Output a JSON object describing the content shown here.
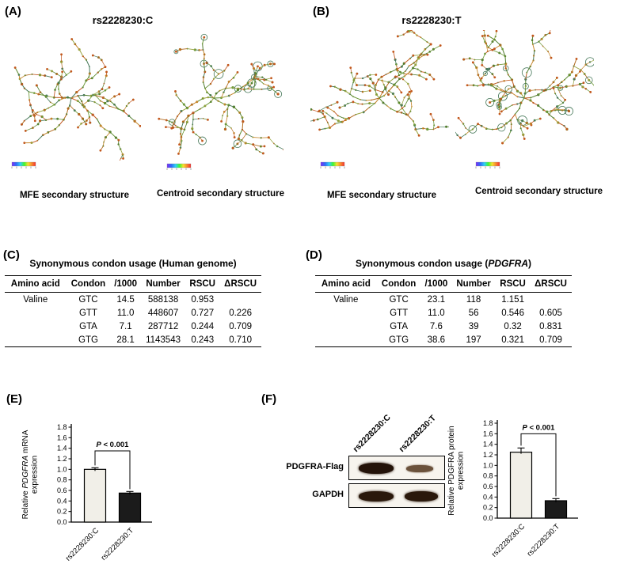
{
  "panels": {
    "a": {
      "label": "(A)",
      "title": "rs2228230:C",
      "mfe_caption": "MFE secondary structure",
      "centroid_caption": "Centroid secondary structure"
    },
    "b": {
      "label": "(B)",
      "title": "rs2228230:T",
      "mfe_caption": "MFE secondary structure",
      "centroid_caption": "Centroid secondary structure"
    },
    "c": {
      "label": "(C)",
      "title_runs": [
        {
          "t": "Synonymous condon usage (Human genome)"
        }
      ],
      "table": {
        "headers": [
          "Amino acid",
          "Condon",
          "/1000",
          "Number",
          "RSCU",
          "ΔRSCU"
        ],
        "rows": [
          [
            "Valine",
            "GTC",
            "14.5",
            "588138",
            "0.953",
            ""
          ],
          [
            "",
            "GTT",
            "11.0",
            "448607",
            "0.727",
            "0.226"
          ],
          [
            "",
            "GTA",
            "7.1",
            "287712",
            "0.244",
            "0.709"
          ],
          [
            "",
            "GTG",
            "28.1",
            "1143543",
            "0.243",
            "0.710"
          ]
        ]
      }
    },
    "d": {
      "label": "(D)",
      "title_runs": [
        {
          "t": "Synonymous condon usage ("
        },
        {
          "t": "PDGFRA",
          "i": true
        },
        {
          "t": ")"
        }
      ],
      "table": {
        "headers": [
          "Amino acid",
          "Condon",
          "/1000",
          "Number",
          "RSCU",
          "ΔRSCU"
        ],
        "rows": [
          [
            "Valine",
            "GTC",
            "23.1",
            "118",
            "1.151",
            ""
          ],
          [
            "",
            "GTT",
            "11.0",
            "56",
            "0.546",
            "0.605"
          ],
          [
            "",
            "GTA",
            "7.6",
            "39",
            "0.32",
            "0.831"
          ],
          [
            "",
            "GTG",
            "38.6",
            "197",
            "0.321",
            "0.709"
          ]
        ]
      }
    },
    "e": {
      "label": "(E)"
    },
    "f": {
      "label": "(F)",
      "blot": {
        "lane_labels": [
          "rs2228230:C",
          "rs2228230:T"
        ],
        "row_labels": [
          "PDGFRA-Flag",
          "GAPDH"
        ]
      }
    }
  },
  "chart_data": [
    {
      "type": "bar",
      "panel": "E",
      "title": "",
      "xlabel": "",
      "ylabel": "Relative PDGFRA mRNA expression",
      "ylabel_lines": [
        [
          {
            "t": "Relative "
          },
          {
            "t": "PDGFRA",
            "i": true
          },
          {
            "t": " mRNA"
          }
        ],
        [
          {
            "t": "expression"
          }
        ]
      ],
      "categories": [
        "rs2228230:C",
        "rs2228230:T"
      ],
      "values": [
        1.0,
        0.55
      ],
      "errors": [
        0.03,
        0.03
      ],
      "bar_colors": [
        "#f1efe8",
        "#1b1b1b"
      ],
      "ylim": [
        0,
        1.8
      ],
      "yticks": [
        0.0,
        0.2,
        0.4,
        0.6,
        0.8,
        1.0,
        1.2,
        1.4,
        1.6,
        1.8
      ],
      "grid": false,
      "legend": "none",
      "annotation": "P < 0.001",
      "annotation_runs": [
        {
          "t": "P",
          "i": true
        },
        {
          "t": " < 0.001"
        }
      ],
      "bracket_y": 1.35
    },
    {
      "type": "bar",
      "panel": "F",
      "title": "",
      "xlabel": "",
      "ylabel": "Relative PDGFRA protein expression",
      "ylabel_lines": [
        [
          {
            "t": "Relative PDGFRA protein"
          }
        ],
        [
          {
            "t": "expression"
          }
        ]
      ],
      "categories": [
        "rs2228230:C",
        "rs2228230:T"
      ],
      "values": [
        1.25,
        0.33
      ],
      "errors": [
        0.08,
        0.04
      ],
      "bar_colors": [
        "#f1efe8",
        "#1b1b1b"
      ],
      "ylim": [
        0,
        1.8
      ],
      "yticks": [
        0.0,
        0.2,
        0.4,
        0.6,
        0.8,
        1.0,
        1.2,
        1.4,
        1.6,
        1.8
      ],
      "grid": false,
      "legend": "none",
      "annotation": "P < 0.001",
      "annotation_runs": [
        {
          "t": "P",
          "i": true
        },
        {
          "t": " < 0.001"
        }
      ],
      "bracket_y": 1.6
    }
  ],
  "colors": {
    "bar_light": "#f1efe8",
    "bar_dark": "#1b1b1b",
    "rna_green": "#5c8a2e",
    "rna_orange": "#c2571c"
  }
}
